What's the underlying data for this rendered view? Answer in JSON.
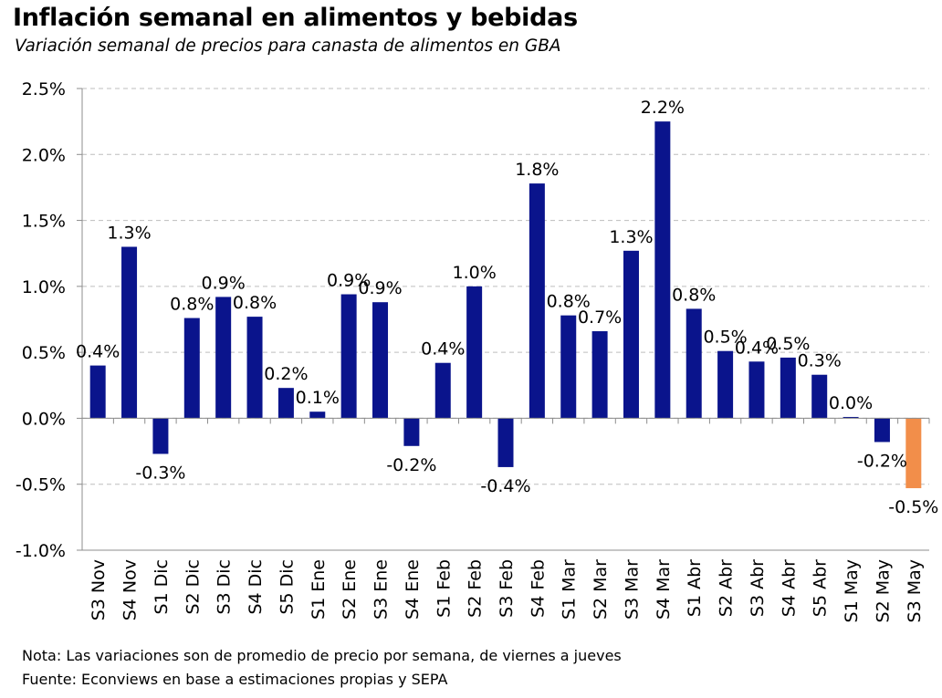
{
  "header": {
    "title": "Inflación semanal en alimentos y bebidas",
    "subtitle": "Variación semanal de precios para canasta de alimentos en GBA"
  },
  "footer": {
    "note": "Nota: Las variaciones son de promedio de precio por semana, de viernes a jueves",
    "source": "Fuente: Econviews en base a estimaciones propias y SEPA"
  },
  "chart_data": {
    "type": "bar",
    "title": "Inflación semanal en alimentos y bebidas",
    "subtitle": "Variación semanal de precios para canasta de alimentos en GBA",
    "xlabel": "",
    "ylabel": "",
    "ylim": [
      -1.0,
      2.5
    ],
    "yticks": [
      2.5,
      2.0,
      1.5,
      1.0,
      0.5,
      0.0,
      -0.5,
      -1.0
    ],
    "ytick_labels": [
      "2.5%",
      "2.0%",
      "1.5%",
      "1.0%",
      "0.5%",
      "0.0%",
      "-0.5%",
      "-1.0%"
    ],
    "grid": true,
    "grid_style": "dashed",
    "bar_color": "#0a148c",
    "highlight_color": "#f28e4a",
    "categories": [
      "S3 Nov",
      "S4 Nov",
      "S1 Dic",
      "S2 Dic",
      "S3 Dic",
      "S4 Dic",
      "S5 Dic",
      "S1 Ene",
      "S2 Ene",
      "S3 Ene",
      "S4 Ene",
      "S1 Feb",
      "S2 Feb",
      "S3 Feb",
      "S4 Feb",
      "S1 Mar",
      "S2 Mar",
      "S3 Mar",
      "S4 Mar",
      "S1 Abr",
      "S2 Abr",
      "S3 Abr",
      "S4 Abr",
      "S5 Abr",
      "S1 May",
      "S2 May",
      "S3 May"
    ],
    "values": [
      0.4,
      1.3,
      -0.27,
      0.76,
      0.92,
      0.77,
      0.23,
      0.05,
      0.94,
      0.88,
      -0.21,
      0.42,
      1.0,
      -0.37,
      1.78,
      0.78,
      0.66,
      1.27,
      2.25,
      0.83,
      0.51,
      0.43,
      0.46,
      0.33,
      0.01,
      -0.18,
      -0.53
    ],
    "data_labels": [
      "0.4%",
      "1.3%",
      "-0.3%",
      "0.8%",
      "0.9%",
      "0.8%",
      "0.2%",
      "0.1%",
      "0.9%",
      "0.9%",
      "-0.2%",
      "0.4%",
      "1.0%",
      "-0.4%",
      "1.8%",
      "0.8%",
      "0.7%",
      "1.3%",
      "2.2%",
      "0.8%",
      "0.5%",
      "0.4%",
      "0.5%",
      "0.3%",
      "0.0%",
      "-0.2%",
      "-0.5%"
    ],
    "highlight_index": 26
  }
}
